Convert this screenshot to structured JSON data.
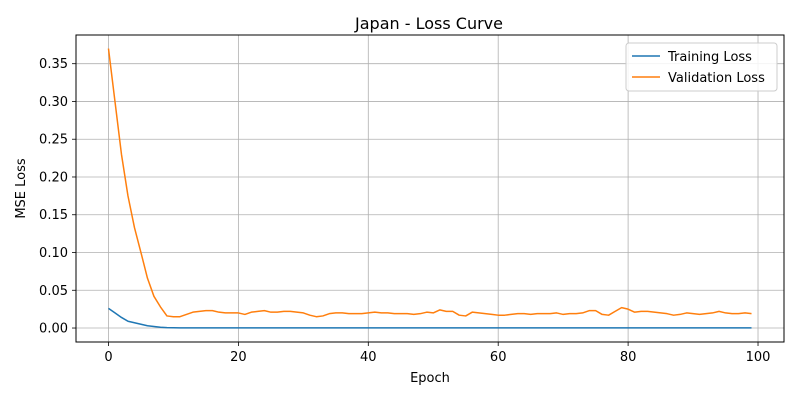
{
  "chart_data": {
    "type": "line",
    "title": "Japan - Loss Curve",
    "xlabel": "Epoch",
    "ylabel": "MSE Loss",
    "xlim": [
      -5,
      104
    ],
    "ylim": [
      -0.0185,
      0.388
    ],
    "xticks": [
      0,
      20,
      40,
      60,
      80,
      100
    ],
    "xtick_labels": [
      "0",
      "20",
      "40",
      "60",
      "80",
      "100"
    ],
    "yticks": [
      0.0,
      0.05,
      0.1,
      0.15,
      0.2,
      0.25,
      0.3,
      0.35
    ],
    "ytick_labels": [
      "0.00",
      "0.05",
      "0.10",
      "0.15",
      "0.20",
      "0.25",
      "0.30",
      "0.35"
    ],
    "grid": true,
    "legend_position": "top-right",
    "series": [
      {
        "name": "Training Loss",
        "color": "#1f77b4",
        "x": [
          0,
          1,
          2,
          3,
          4,
          5,
          6,
          7,
          8,
          9,
          10,
          11,
          12,
          13,
          14,
          15,
          16,
          17,
          18,
          19,
          20,
          21,
          22,
          23,
          24,
          25,
          26,
          27,
          28,
          29,
          30,
          31,
          32,
          33,
          34,
          35,
          36,
          37,
          38,
          39,
          40,
          41,
          42,
          43,
          44,
          45,
          46,
          47,
          48,
          49,
          50,
          51,
          52,
          53,
          54,
          55,
          56,
          57,
          58,
          59,
          60,
          61,
          62,
          63,
          64,
          65,
          66,
          67,
          68,
          69,
          70,
          71,
          72,
          73,
          74,
          75,
          76,
          77,
          78,
          79,
          80,
          81,
          82,
          83,
          84,
          85,
          86,
          87,
          88,
          89,
          90,
          91,
          92,
          93,
          94,
          95,
          96,
          97,
          98,
          99
        ],
        "values": [
          0.026,
          0.02,
          0.014,
          0.009,
          0.007,
          0.005,
          0.003,
          0.002,
          0.001,
          0.0005,
          0.0003,
          0.0002,
          0.0002,
          0.0002,
          0.0002,
          0.0002,
          0.0002,
          0.0002,
          0.0002,
          0.0002,
          0.0002,
          0.0002,
          0.0002,
          0.0002,
          0.0002,
          0.0002,
          0.0002,
          0.0002,
          0.0002,
          0.0002,
          0.0002,
          0.0002,
          0.0002,
          0.0002,
          0.0002,
          0.0002,
          0.0002,
          0.0002,
          0.0002,
          0.0002,
          0.0002,
          0.0002,
          0.0002,
          0.0002,
          0.0002,
          0.0002,
          0.0002,
          0.0002,
          0.0002,
          0.0002,
          0.0002,
          0.0002,
          0.0002,
          0.0002,
          0.0002,
          0.0002,
          0.0002,
          0.0002,
          0.0002,
          0.0002,
          0.0002,
          0.0002,
          0.0002,
          0.0002,
          0.0002,
          0.0002,
          0.0002,
          0.0002,
          0.0002,
          0.0002,
          0.0002,
          0.0002,
          0.0002,
          0.0002,
          0.0002,
          0.0002,
          0.0002,
          0.0002,
          0.0002,
          0.0002,
          0.0002,
          0.0002,
          0.0002,
          0.0002,
          0.0002,
          0.0002,
          0.0002,
          0.0002,
          0.0002,
          0.0002,
          0.0002,
          0.0002,
          0.0002,
          0.0002,
          0.0002,
          0.0002,
          0.0002,
          0.0002,
          0.0002,
          0.0002
        ]
      },
      {
        "name": "Validation Loss",
        "color": "#ff7f0e",
        "x": [
          0,
          1,
          2,
          3,
          4,
          5,
          6,
          7,
          8,
          9,
          10,
          11,
          12,
          13,
          14,
          15,
          16,
          17,
          18,
          19,
          20,
          21,
          22,
          23,
          24,
          25,
          26,
          27,
          28,
          29,
          30,
          31,
          32,
          33,
          34,
          35,
          36,
          37,
          38,
          39,
          40,
          41,
          42,
          43,
          44,
          45,
          46,
          47,
          48,
          49,
          50,
          51,
          52,
          53,
          54,
          55,
          56,
          57,
          58,
          59,
          60,
          61,
          62,
          63,
          64,
          65,
          66,
          67,
          68,
          69,
          70,
          71,
          72,
          73,
          74,
          75,
          76,
          77,
          78,
          79,
          80,
          81,
          82,
          83,
          84,
          85,
          86,
          87,
          88,
          89,
          90,
          91,
          92,
          93,
          94,
          95,
          96,
          97,
          98,
          99
        ],
        "values": [
          0.37,
          0.3,
          0.23,
          0.175,
          0.133,
          0.1,
          0.066,
          0.042,
          0.028,
          0.016,
          0.015,
          0.015,
          0.018,
          0.021,
          0.022,
          0.023,
          0.023,
          0.021,
          0.02,
          0.02,
          0.02,
          0.018,
          0.021,
          0.022,
          0.023,
          0.021,
          0.021,
          0.022,
          0.022,
          0.021,
          0.02,
          0.017,
          0.015,
          0.016,
          0.019,
          0.02,
          0.02,
          0.019,
          0.019,
          0.019,
          0.02,
          0.021,
          0.02,
          0.02,
          0.019,
          0.019,
          0.019,
          0.018,
          0.019,
          0.021,
          0.02,
          0.024,
          0.022,
          0.022,
          0.017,
          0.016,
          0.021,
          0.02,
          0.019,
          0.018,
          0.017,
          0.017,
          0.018,
          0.019,
          0.019,
          0.018,
          0.019,
          0.019,
          0.019,
          0.02,
          0.018,
          0.019,
          0.019,
          0.02,
          0.023,
          0.023,
          0.018,
          0.017,
          0.022,
          0.027,
          0.025,
          0.021,
          0.022,
          0.022,
          0.021,
          0.02,
          0.019,
          0.017,
          0.018,
          0.02,
          0.019,
          0.018,
          0.019,
          0.02,
          0.022,
          0.02,
          0.019,
          0.019,
          0.02,
          0.019
        ]
      }
    ]
  }
}
